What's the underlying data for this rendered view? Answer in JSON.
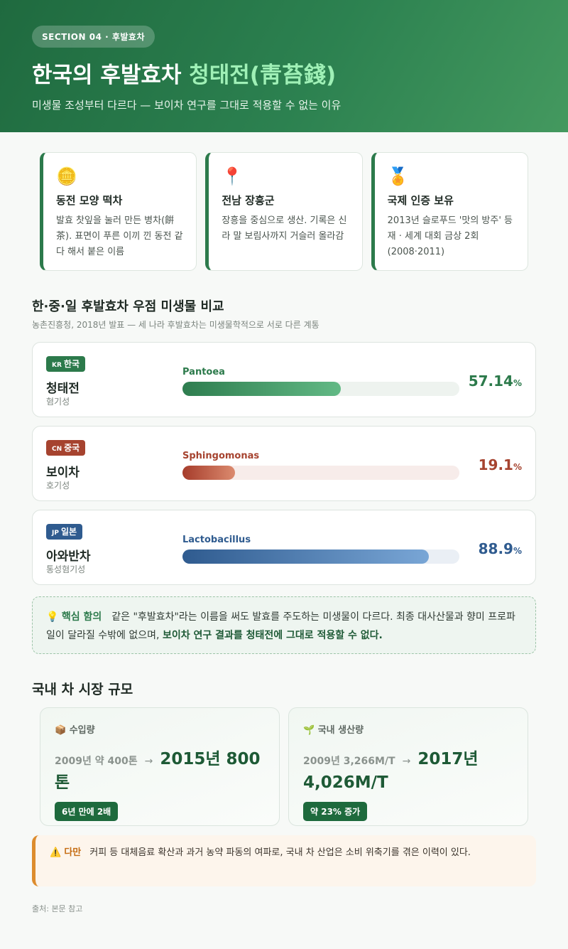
{
  "header": {
    "section_label": "SECTION 04 · 후발효차",
    "title_main": "한국의 후발효차 ",
    "title_accent": "청태전(靑苔錢)",
    "subtitle": "미생물 조성부터 다르다 — 보이차 연구를 그대로 적용할 수 없는 이유"
  },
  "features": [
    {
      "icon": "coin-icon",
      "glyph": "🪙",
      "title": "동전 모양 떡차",
      "desc": "발효 찻잎을 눌러 만든 병차(餠茶). 표면이 푸른 이끼 낀 동전 같다 해서 붙은 이름"
    },
    {
      "icon": "pin-icon",
      "glyph": "📍",
      "title": "전남 장흥군",
      "desc": "장흥을 중심으로 생산. 기록은 신라 말 보림사까지 거슬러 올라감"
    },
    {
      "icon": "medal-icon",
      "glyph": "🏅",
      "title": "국제 인증 보유",
      "desc": "2013년 슬로푸드 '맛의 방주' 등재 · 세계 대회 금상 2회 (2008·2011)"
    }
  ],
  "comparison": {
    "title": "한·중·일 후발효차 우점 미생물 비교",
    "subtitle": "농촌진흥청, 2018년 발표 — 세 나라 후발효차는 미생물학적으로 서로 다른 계통",
    "rows": [
      {
        "cc": "KR",
        "country": "한국",
        "name": "청태전",
        "type": "혐기성",
        "microbe": "Pantoea",
        "value": 57.14,
        "value_text": "57.14",
        "unit": "%",
        "color": "#2c7a4b",
        "fill_from": "#2e7d4f",
        "fill_to": "#62b985",
        "track": "#eef3ef"
      },
      {
        "cc": "CN",
        "country": "중국",
        "name": "보이차",
        "type": "호기성",
        "microbe": "Sphingomonas",
        "value": 19.1,
        "value_text": "19.1",
        "unit": "%",
        "color": "#a6432f",
        "fill_from": "#a63c2b",
        "fill_to": "#db8a6e",
        "track": "#f7ecea"
      },
      {
        "cc": "JP",
        "country": "일본",
        "name": "아와반차",
        "type": "통성혐기성",
        "microbe": "Lactobacillus",
        "value": 88.9,
        "value_text": "88.9",
        "unit": "%",
        "color": "#2f5b8f",
        "fill_from": "#2f5b8f",
        "fill_to": "#79a6d6",
        "track": "#eaeff5"
      }
    ]
  },
  "insight": {
    "icon": "bulb-icon",
    "label": "핵심 함의",
    "text": "같은 \"후발효차\"라는 이름을 써도 발효를 주도하는 미생물이 다르다. 최종 대사산물과 향미 프로파일이 달라질 수밖에 없으며, ",
    "bold": "보이차 연구 결과를 청태전에 그대로 적용할 수 없다."
  },
  "market": {
    "title": "국내 차 시장 규모",
    "stats": [
      {
        "icon": "box-icon",
        "glyph": "📦",
        "label": "수입량",
        "from": "2009년 약 400톤",
        "arrow": "→",
        "to": "2015년 800톤",
        "tag": "6년 만에 2배"
      },
      {
        "icon": "sprout-icon",
        "glyph": "🌱",
        "label": "국내 생산량",
        "from": "2009년 3,266M/T",
        "arrow": "→",
        "to": "2017년 4,026M/T",
        "tag": "약 23% 증가"
      }
    ]
  },
  "warning": {
    "icon": "warning-icon",
    "label": "다만",
    "text": "커피 등 대체음료 확산과 과거 농약 파동의 여파로, 국내 차 산업은 소비 위축기를 겪은 이력이 있다."
  },
  "source": "출처: 본문 참고"
}
